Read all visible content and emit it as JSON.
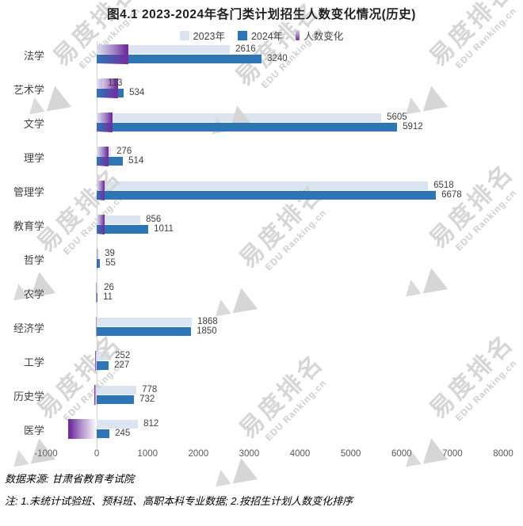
{
  "title": "图4.1 2023-2024年各门类计划招生人数变化情况(历史)",
  "chart_data": {
    "type": "bar",
    "orientation": "horizontal",
    "title": "图4.1 2023-2024年各门类计划招生人数变化情况(历史)",
    "categories": [
      "法学",
      "艺术学",
      "文学",
      "理学",
      "管理学",
      "教育学",
      "哲学",
      "农学",
      "经济学",
      "工学",
      "历史学",
      "医学"
    ],
    "series": [
      {
        "name": "2023年",
        "color": "#dbe5f1",
        "values": [
          2616,
          113,
          5605,
          276,
          6518,
          856,
          39,
          26,
          1868,
          252,
          778,
          812
        ]
      },
      {
        "name": "2024年",
        "color": "#2e75b6",
        "values": [
          3240,
          534,
          5912,
          514,
          6678,
          1011,
          55,
          11,
          1850,
          227,
          732,
          245
        ]
      }
    ],
    "change_series": {
      "name": "人数变化",
      "color": "#7030a0",
      "values": [
        624,
        421,
        307,
        238,
        160,
        155,
        16,
        -15,
        -18,
        -25,
        -46,
        -567
      ]
    },
    "xlabel": "",
    "ylabel": "",
    "xlim": [
      -1000,
      8000
    ],
    "x_ticks": [
      -1000,
      0,
      1000,
      2000,
      3000,
      4000,
      5000,
      6000,
      7000,
      8000
    ],
    "grid": false,
    "legend_position": "top",
    "sort_note": "sorted by change descending"
  },
  "footer": {
    "source": "数据来源: 甘肃省教育考试院",
    "note": "注: 1.未统计试验班、预科班、高职本科专业数据; 2.按招生计划人数变化排序"
  },
  "watermark": {
    "cn": "易度排名",
    "en": "EDU Ranking.cn"
  },
  "colors": {
    "bar_2023": "#dbe5f1",
    "bar_2024": "#2e75b6",
    "change": "#7030a0",
    "axis_line": "#d0d0d0"
  }
}
